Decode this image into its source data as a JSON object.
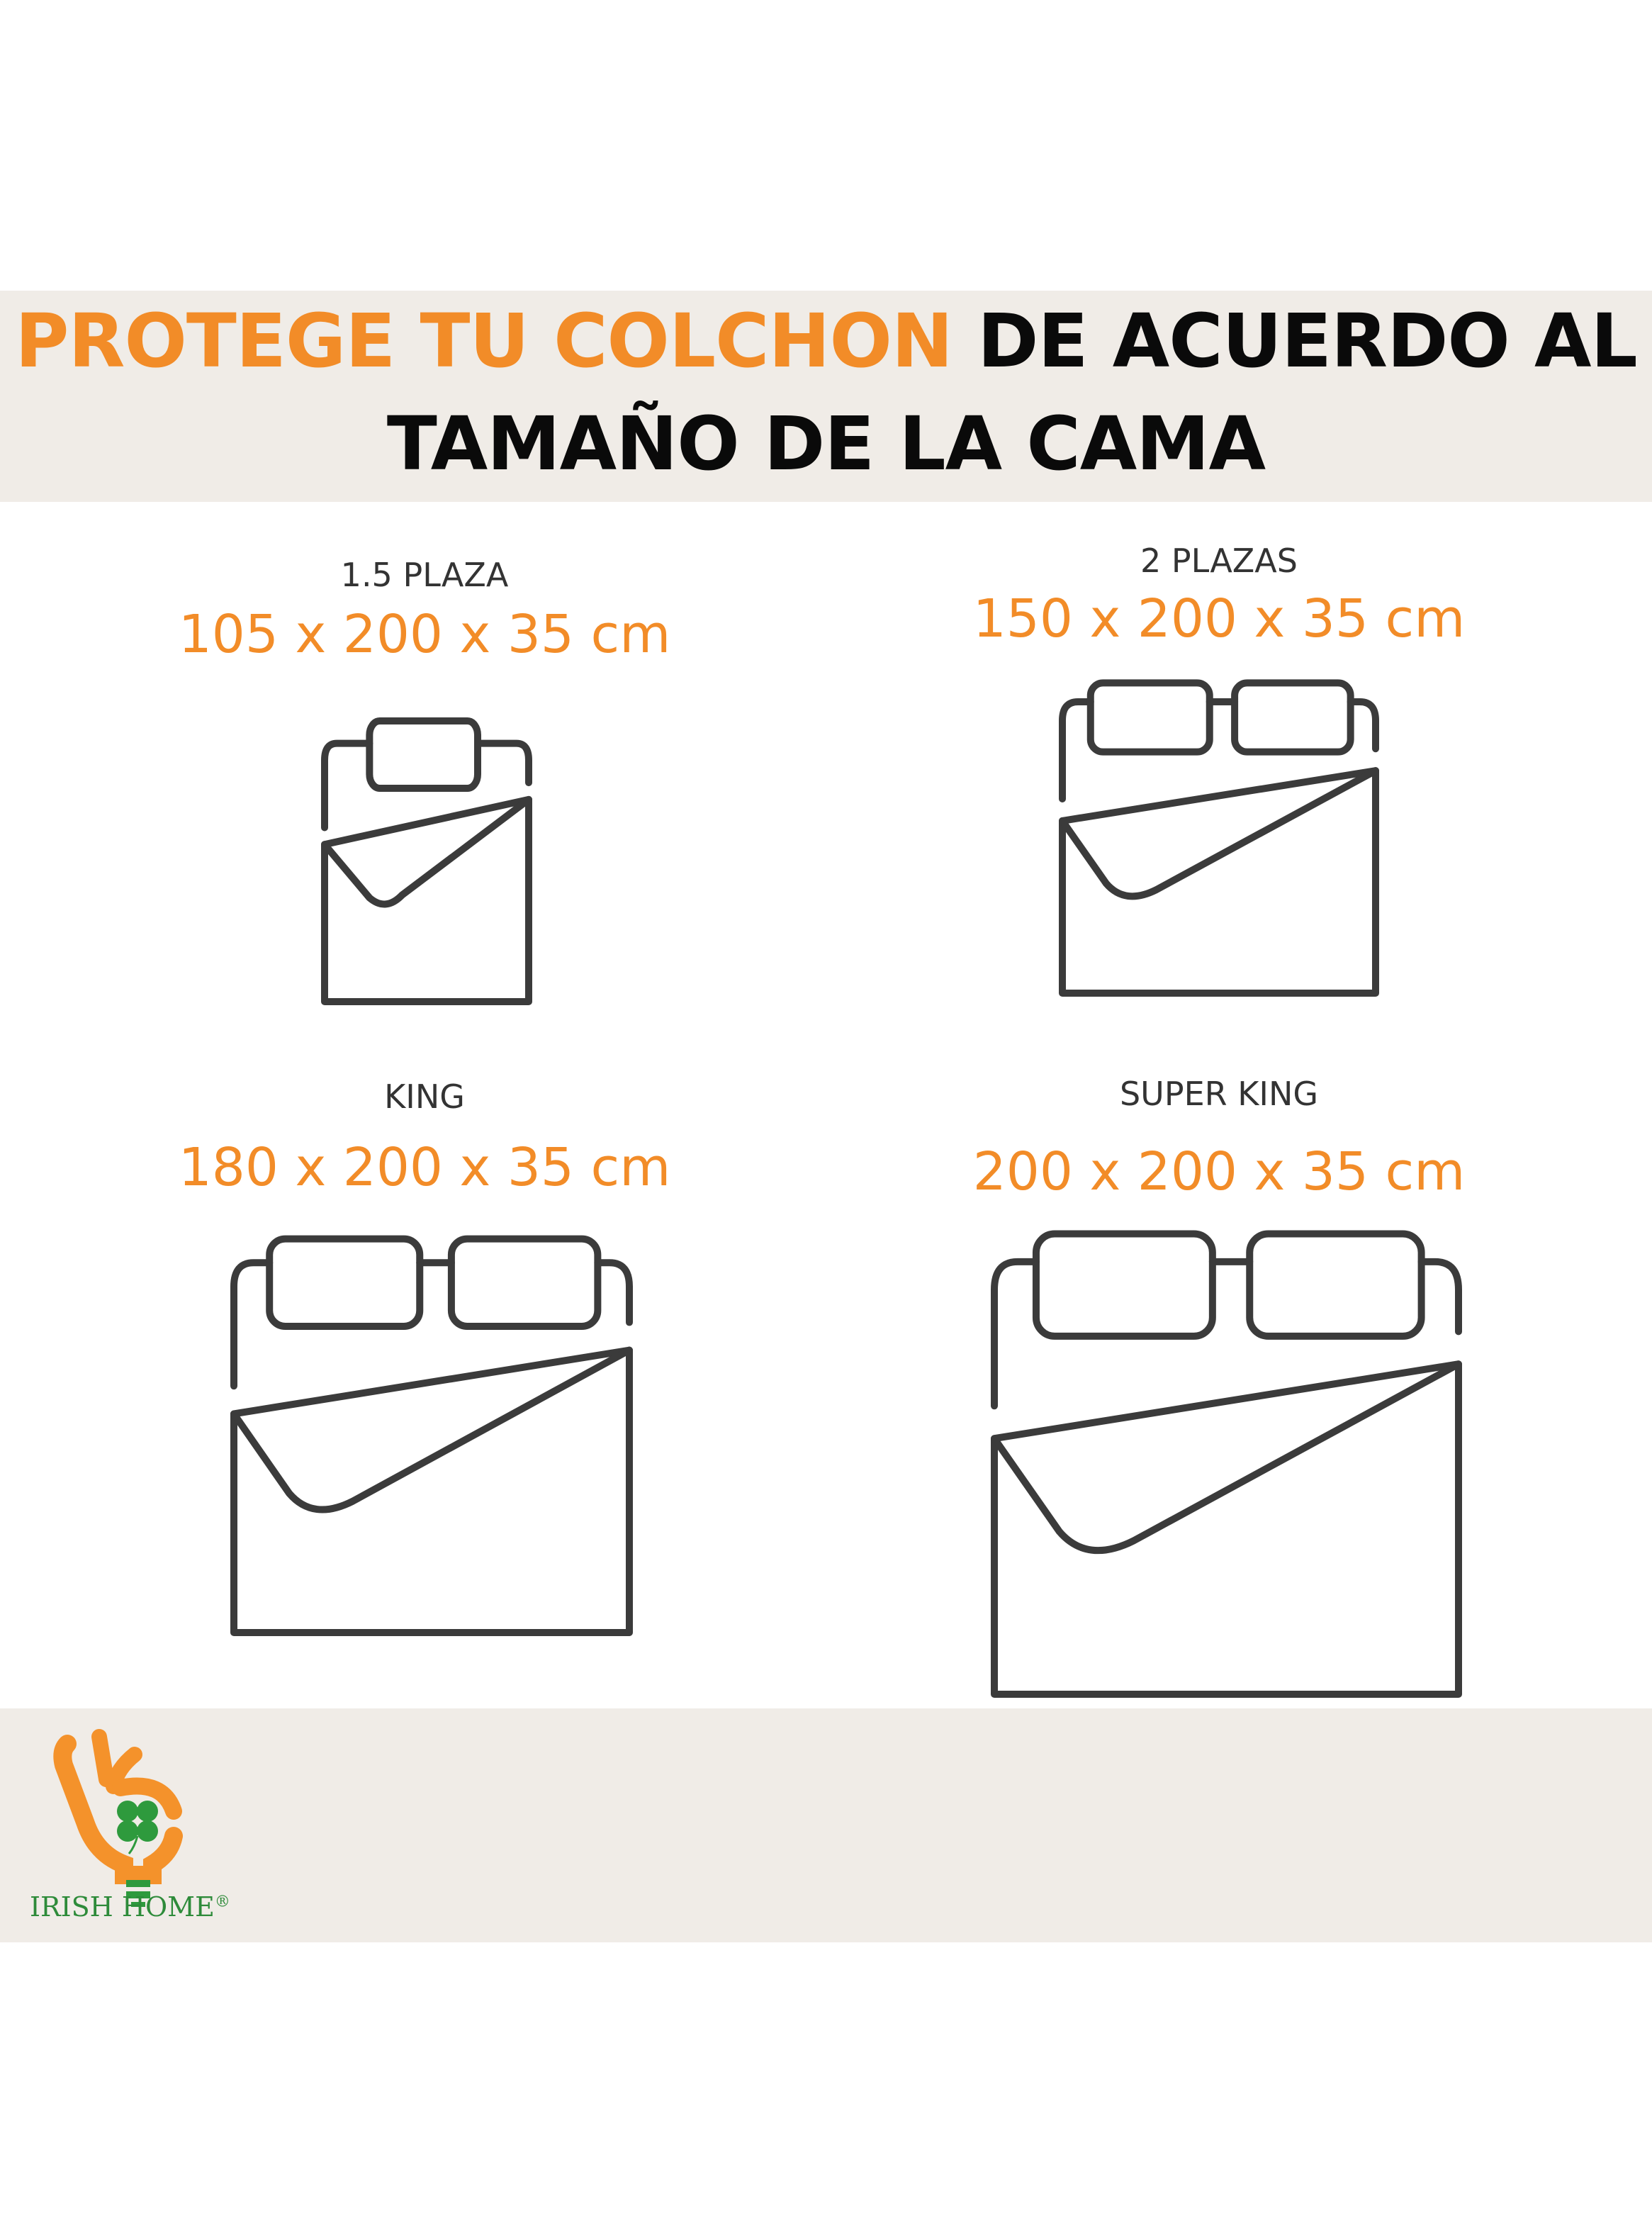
{
  "header": {
    "title_highlight": "PROTEGE TU COLCHON",
    "title_rest": "DE ACUERDO AL",
    "title_line2": "TAMAÑO DE LA CAMA"
  },
  "sizes": [
    {
      "name": "1.5 PLAZA",
      "dimensions": "105 x 200 x 35 cm",
      "icon": "single-bed-icon"
    },
    {
      "name": "2 PLAZAS",
      "dimensions": "150 x 200 x 35 cm",
      "icon": "double-bed-icon"
    },
    {
      "name": "KING",
      "dimensions": "180 x 200 x 35 cm",
      "icon": "double-bed-icon"
    },
    {
      "name": "SUPER KING",
      "dimensions": "200 x 200 x 35 cm",
      "icon": "double-bed-icon"
    }
  ],
  "footer": {
    "brand": "IRISH HOME",
    "registered": "®"
  },
  "colors": {
    "accent": "#f28c28",
    "band": "#f0ece7",
    "icon_stroke": "#3b3b3b",
    "brand_green": "#2e8b3a"
  }
}
